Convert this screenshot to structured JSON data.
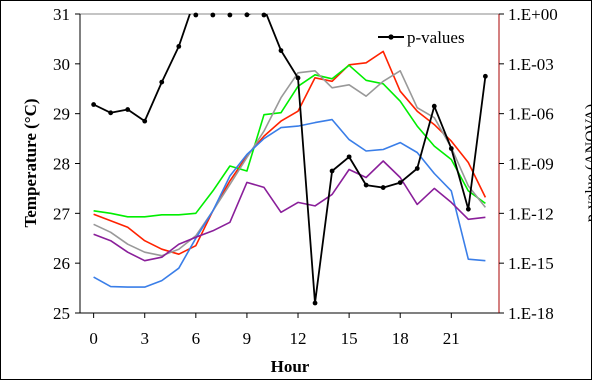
{
  "chart_data": {
    "type": "line",
    "title": "",
    "xlabel": "Hour",
    "ylabel_left": "Temperature (°C)",
    "ylabel_right": "p-value (ANOVA)",
    "x": [
      0,
      1,
      2,
      3,
      4,
      5,
      6,
      7,
      8,
      9,
      10,
      11,
      12,
      13,
      14,
      15,
      16,
      17,
      18,
      19,
      20,
      21,
      22,
      23
    ],
    "x_ticks": [
      0,
      3,
      6,
      9,
      12,
      15,
      18,
      21
    ],
    "x_tick_labels": [
      "0",
      "3",
      "6",
      "9",
      "12",
      "15",
      "18",
      "21"
    ],
    "xlim": [
      -0.8,
      23.8
    ],
    "ylim_left": [
      25,
      31
    ],
    "y_ticks_left": [
      25,
      26,
      27,
      28,
      29,
      30,
      31
    ],
    "y_tick_labels_left": [
      "25",
      "26",
      "27",
      "28",
      "29",
      "30",
      "31"
    ],
    "ylim_right_log10": [
      -18,
      0
    ],
    "y_ticks_right_log10": [
      0,
      -3,
      -6,
      -9,
      -12,
      -15,
      -18
    ],
    "y_tick_labels_right": [
      "1.E+00",
      "1.E-03",
      "1.E-06",
      "1.E-09",
      "1.E-12",
      "1.E-15",
      "1.E-18"
    ],
    "legend": {
      "position": "top-right",
      "entries": [
        "p-values"
      ]
    },
    "grid": false,
    "series": [
      {
        "color": "#ff2200",
        "axis": "left",
        "values": [
          26.98,
          26.85,
          26.72,
          26.45,
          26.28,
          26.18,
          26.35,
          27.05,
          27.65,
          28.15,
          28.55,
          28.85,
          29.05,
          29.72,
          29.65,
          29.98,
          30.02,
          30.25,
          29.45,
          29.05,
          28.78,
          28.45,
          28.02,
          27.32
        ]
      },
      {
        "color": "#00ee00",
        "axis": "left",
        "values": [
          27.05,
          27.0,
          26.93,
          26.93,
          26.97,
          26.97,
          27.0,
          27.45,
          27.95,
          27.85,
          28.98,
          29.02,
          29.55,
          29.78,
          29.7,
          29.97,
          29.67,
          29.6,
          29.25,
          28.75,
          28.35,
          28.08,
          27.45,
          27.2
        ]
      },
      {
        "color": "#999999",
        "axis": "left",
        "values": [
          26.78,
          26.62,
          26.38,
          26.22,
          26.15,
          26.28,
          26.55,
          27.05,
          27.58,
          28.12,
          28.65,
          29.32,
          29.82,
          29.86,
          29.52,
          29.58,
          29.35,
          29.65,
          29.86,
          29.12,
          28.92,
          28.32,
          27.55,
          27.12
        ]
      },
      {
        "color": "#3a7ee8",
        "axis": "left",
        "values": [
          25.72,
          25.53,
          25.52,
          25.52,
          25.65,
          25.9,
          26.5,
          27.05,
          27.75,
          28.18,
          28.5,
          28.72,
          28.75,
          28.82,
          28.88,
          28.48,
          28.25,
          28.28,
          28.42,
          28.22,
          27.8,
          27.45,
          26.08,
          26.05
        ]
      },
      {
        "color": "#8a1f9a",
        "axis": "left",
        "values": [
          26.58,
          26.45,
          26.22,
          26.05,
          26.12,
          26.38,
          26.52,
          26.65,
          26.82,
          27.62,
          27.52,
          27.02,
          27.22,
          27.15,
          27.38,
          27.88,
          27.72,
          28.05,
          27.72,
          27.18,
          27.5,
          27.22,
          26.88,
          26.92
        ]
      },
      {
        "name": "p-values",
        "color": "#000000",
        "axis": "right",
        "markers": true,
        "values_log10": [
          -5.45,
          -5.95,
          -5.75,
          -6.45,
          -4.1,
          -1.95,
          1.05,
          1.05,
          0.65,
          -0.05,
          0.35,
          -2.2,
          -3.85,
          -17.4,
          -9.45,
          -8.6,
          -10.3,
          -10.45,
          -10.15,
          -9.3,
          -5.55,
          -8.1,
          -11.75,
          -3.75
        ]
      }
    ]
  }
}
